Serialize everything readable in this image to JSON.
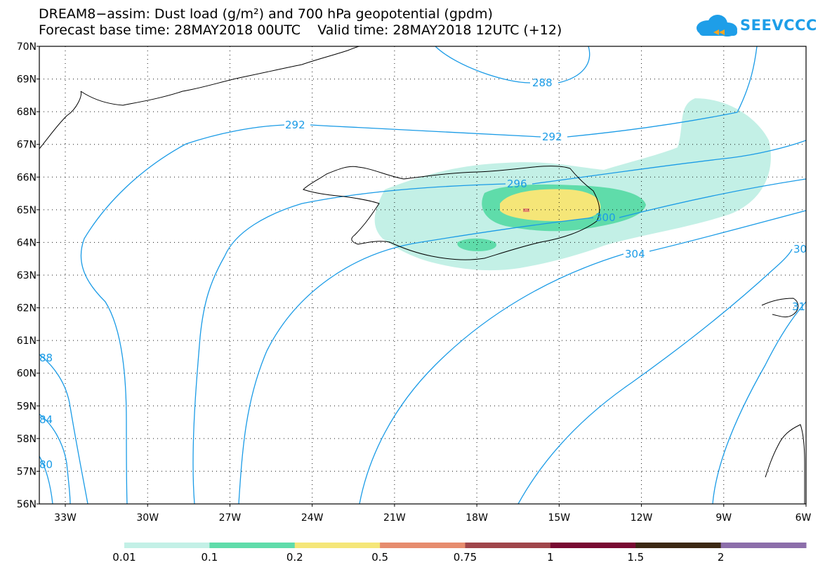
{
  "header": {
    "title_line1": "DREAM8−assim: Dust load (g/m²) and 700 hPa geopotential (gpdm)",
    "title_line2": "Forecast base time: 28MAY2018 00UTC    Valid time: 28MAY2018 12UTC (+12)",
    "logo_text": "SEEVCCC"
  },
  "map": {
    "lat_labels": [
      "70N",
      "69N",
      "68N",
      "67N",
      "66N",
      "65N",
      "64N",
      "63N",
      "62N",
      "61N",
      "60N",
      "59N",
      "58N",
      "57N",
      "56N"
    ],
    "lon_labels": [
      "33W",
      "30W",
      "27W",
      "24W",
      "21W",
      "18W",
      "15W",
      "12W",
      "9W",
      "6W"
    ],
    "contour_labels": {
      "c288_top": "288",
      "c292_a": "292",
      "c292_b": "292",
      "c296": "296",
      "c300": "300",
      "c304": "304",
      "c308_edge": "30",
      "c312_edge": "31",
      "c288_left": "88",
      "c284_left": "84",
      "c280_left": "80"
    },
    "colors": {
      "contour": "#1a9be6",
      "coast": "#000000",
      "dust_001": "#c3f0e6",
      "dust_01": "#5fdcaa",
      "dust_02": "#f5e678",
      "dust_05": "#e68c6e",
      "dust_075": "#a0464b",
      "dust_1": "#780a32",
      "dust_15": "#3c2814",
      "dust_2": "#8c6eaa"
    }
  },
  "colorbar": {
    "labels": [
      "0.01",
      "0.1",
      "0.2",
      "0.5",
      "0.75",
      "1",
      "1.5",
      "2"
    ],
    "colors": [
      "#c3f0e6",
      "#5fdcaa",
      "#f5e678",
      "#e68c6e",
      "#a0464b",
      "#780a32",
      "#3c2814",
      "#8c6eaa"
    ]
  }
}
